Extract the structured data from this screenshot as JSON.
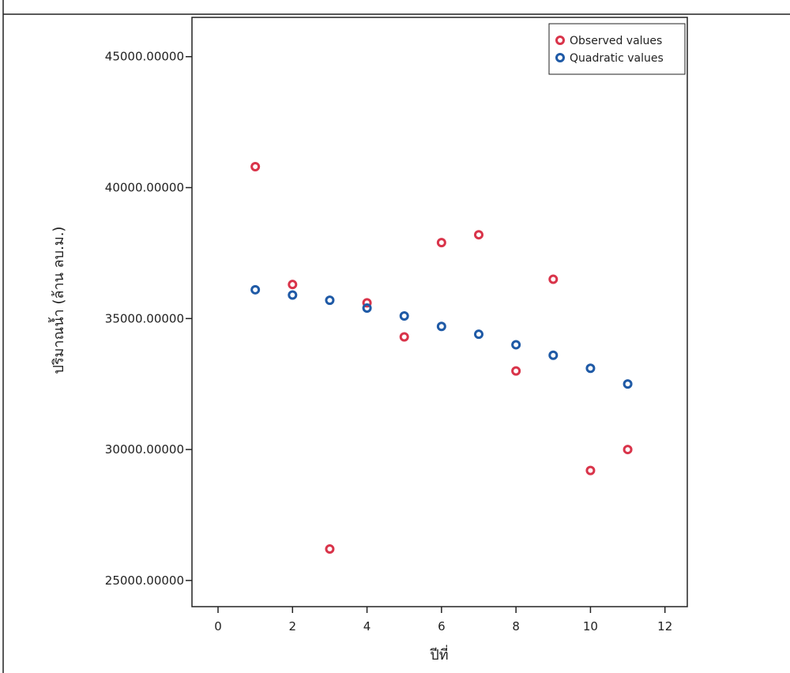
{
  "chart_data": {
    "type": "scatter",
    "title": "",
    "xlabel": "ปีที่",
    "ylabel": "ปริมาณน้ำ (ล้าน ลบ.ม.)",
    "xlim": [
      -0.7,
      12.6
    ],
    "ylim": [
      24000,
      46500
    ],
    "x_ticks": [
      0,
      2,
      4,
      6,
      8,
      10,
      12
    ],
    "x_tick_labels": [
      "0",
      "2",
      "4",
      "6",
      "8",
      "10",
      "12"
    ],
    "y_ticks": [
      25000,
      30000,
      35000,
      40000,
      45000
    ],
    "y_tick_labels": [
      "25000.00000",
      "30000.00000",
      "35000.00000",
      "40000.00000",
      "45000.00000"
    ],
    "grid": false,
    "legend_position": "top-right",
    "series": [
      {
        "name": "Observed values",
        "color": "#d9344a",
        "points": [
          {
            "x": 1,
            "y": 40800
          },
          {
            "x": 2,
            "y": 36300
          },
          {
            "x": 3,
            "y": 26200
          },
          {
            "x": 4,
            "y": 35600
          },
          {
            "x": 5,
            "y": 34300
          },
          {
            "x": 6,
            "y": 37900
          },
          {
            "x": 7,
            "y": 38200
          },
          {
            "x": 8,
            "y": 33000
          },
          {
            "x": 9,
            "y": 36500
          },
          {
            "x": 10,
            "y": 29200
          },
          {
            "x": 11,
            "y": 30000
          }
        ]
      },
      {
        "name": "Quadratic values",
        "color": "#1f5aa6",
        "points": [
          {
            "x": 1,
            "y": 36100
          },
          {
            "x": 2,
            "y": 35900
          },
          {
            "x": 3,
            "y": 35700
          },
          {
            "x": 4,
            "y": 35400
          },
          {
            "x": 5,
            "y": 35100
          },
          {
            "x": 6,
            "y": 34700
          },
          {
            "x": 7,
            "y": 34400
          },
          {
            "x": 8,
            "y": 34000
          },
          {
            "x": 9,
            "y": 33600
          },
          {
            "x": 10,
            "y": 33100
          },
          {
            "x": 11,
            "y": 32500
          }
        ]
      }
    ]
  }
}
